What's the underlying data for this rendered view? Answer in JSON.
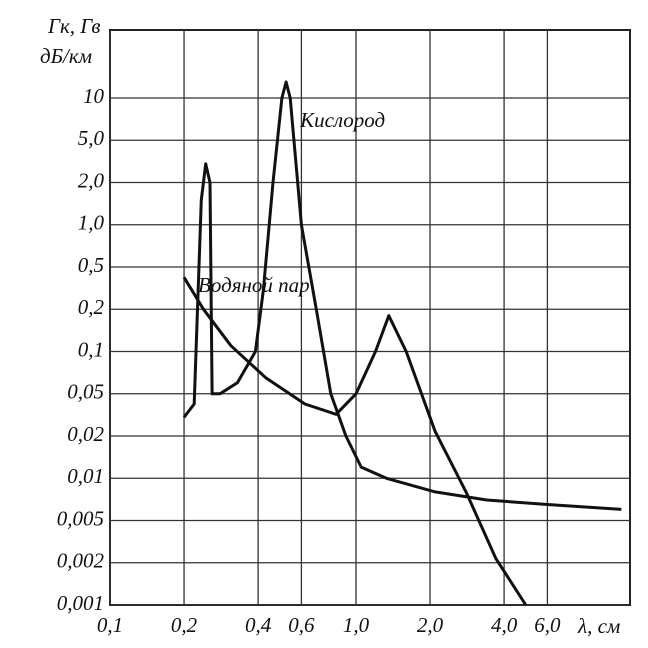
{
  "chart_data": {
    "type": "line",
    "ylabel": [
      "Гк, Гв",
      "дБ/км"
    ],
    "xlabel": "λ, см",
    "x_scale": "log",
    "y_scale": "log",
    "grid": true,
    "xlim": [
      0.1,
      13
    ],
    "ylim": [
      0.001,
      30
    ],
    "xticks": [
      {
        "value": 0.1,
        "label": "0,1"
      },
      {
        "value": 0.2,
        "label": "0,2"
      },
      {
        "value": 0.4,
        "label": "0,4"
      },
      {
        "value": 0.6,
        "label": "0,6"
      },
      {
        "value": 1.0,
        "label": "1,0"
      },
      {
        "value": 2.0,
        "label": "2,0"
      },
      {
        "value": 4.0,
        "label": "4,0"
      },
      {
        "value": 6.0,
        "label": "6,0"
      }
    ],
    "yticks": [
      {
        "value": 0.001,
        "label": "0,001"
      },
      {
        "value": 0.002,
        "label": "0,002"
      },
      {
        "value": 0.005,
        "label": "0,005"
      },
      {
        "value": 0.01,
        "label": "0,01"
      },
      {
        "value": 0.02,
        "label": "0,02"
      },
      {
        "value": 0.05,
        "label": "0,05"
      },
      {
        "value": 0.1,
        "label": "0,1"
      },
      {
        "value": 0.2,
        "label": "0,2"
      },
      {
        "value": 0.5,
        "label": "0,5"
      },
      {
        "value": 1.0,
        "label": "1,0"
      },
      {
        "value": 2.0,
        "label": "2,0"
      },
      {
        "value": 5.0,
        "label": "5,0"
      },
      10
    ],
    "series": [
      {
        "name": "Кислород",
        "color": "#111111",
        "x": [
          0.2,
          0.22,
          0.235,
          0.245,
          0.255,
          0.26,
          0.28,
          0.33,
          0.39,
          0.42,
          0.46,
          0.5,
          0.52,
          0.54,
          0.6,
          0.69,
          0.79,
          0.91,
          1.05,
          1.33,
          2.1,
          3.4,
          6,
          12
        ],
        "values": [
          0.03,
          0.04,
          1.5,
          3.0,
          2.0,
          0.05,
          0.05,
          0.06,
          0.1,
          0.3,
          2,
          10,
          13,
          10,
          1,
          0.2,
          0.05,
          0.02,
          0.012,
          0.01,
          0.008,
          0.007,
          0.0065,
          0.006
        ]
      },
      {
        "name": "Водяной пар",
        "color": "#111111",
        "x": [
          0.2,
          0.24,
          0.31,
          0.43,
          0.62,
          0.83,
          1.0,
          1.2,
          1.36,
          1.6,
          2.1,
          2.8,
          3.7,
          4.9
        ],
        "values": [
          0.4,
          0.2,
          0.11,
          0.065,
          0.04,
          0.032,
          0.05,
          0.1,
          0.18,
          0.1,
          0.022,
          0.008,
          0.0022,
          0.001
        ]
      }
    ]
  }
}
